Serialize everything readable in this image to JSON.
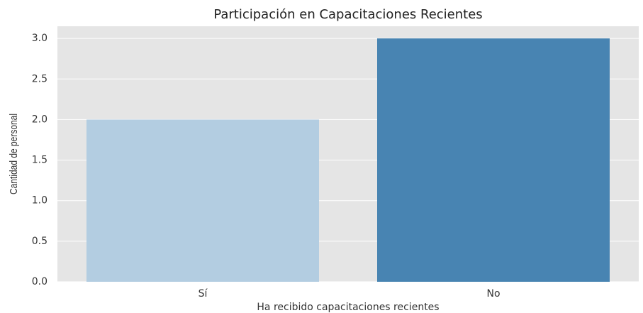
{
  "chart_data": {
    "type": "bar",
    "title": "Participación en Capacitaciones Recientes",
    "x_label": "Ha recibido capacitaciones recientes",
    "y_label": "Cantidad de personal",
    "categories": [
      "Sí",
      "No"
    ],
    "values": [
      2,
      3
    ],
    "colors": [
      "#b3cde1",
      "#4884b2"
    ],
    "ylim": [
      0,
      3.15
    ],
    "yticks": [
      {
        "value": 0,
        "label": "0.0"
      },
      {
        "value": 0.5,
        "label": "0.5"
      },
      {
        "value": 1,
        "label": "1.0"
      },
      {
        "value": 1.5,
        "label": "1.5"
      },
      {
        "value": 2,
        "label": "2.0"
      },
      {
        "value": 2.5,
        "label": "2.5"
      },
      {
        "value": 3,
        "label": "3.0"
      }
    ],
    "grid": true
  }
}
